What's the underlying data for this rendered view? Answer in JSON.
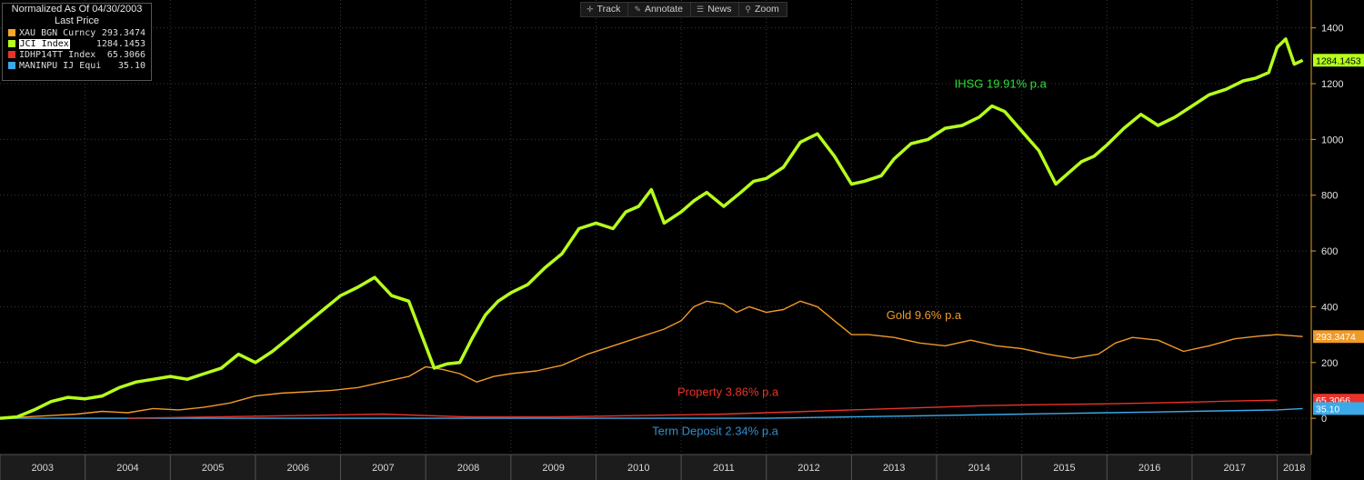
{
  "legend": {
    "header": "Normalized As Of 04/30/2003",
    "subheader": "Last Price",
    "items": [
      {
        "name": "XAU BGN Curncy",
        "value": "293.3474",
        "color": "#f5a623"
      },
      {
        "name": "JCI Index",
        "value": "1284.1453",
        "color": "#b6ff1c"
      },
      {
        "name": "IDHP14TT Index",
        "value": "65.3066",
        "color": "#e8332a"
      },
      {
        "name": "MANINPU IJ Equity",
        "value": "35.10",
        "color": "#3ba9e8"
      }
    ]
  },
  "toolbar": [
    {
      "label": "Track",
      "icon": "crosshair-icon",
      "glyph": "✛"
    },
    {
      "label": "Annotate",
      "icon": "pen-icon",
      "glyph": "✎"
    },
    {
      "label": "News",
      "icon": "news-icon",
      "glyph": "☰"
    },
    {
      "label": "Zoom",
      "icon": "magnifier-icon",
      "glyph": "⚲"
    }
  ],
  "chart_data": {
    "type": "line",
    "ylim": [
      -130,
      1500
    ],
    "yticks": [
      0,
      200,
      400,
      600,
      800,
      1000,
      1200,
      1400
    ],
    "xlim": [
      2003.0,
      2018.4
    ],
    "xticks": [
      "2003",
      "2004",
      "2005",
      "2006",
      "2007",
      "2008",
      "2009",
      "2010",
      "2011",
      "2012",
      "2013",
      "2014",
      "2015",
      "2016",
      "2017",
      "2018"
    ],
    "grid": true,
    "annotations": [
      {
        "text": "IHSG 19.91% p.a",
        "x": 2014.75,
        "y": 1185,
        "color": "#2ee03a"
      },
      {
        "text": "Gold 9.6% p.a",
        "x": 2013.85,
        "y": 355,
        "color": "#f09a28"
      },
      {
        "text": "Property 3.86% p.a",
        "x": 2011.55,
        "y": 80,
        "color": "#e8332a"
      },
      {
        "text": "Term Deposit 2.34% p.a",
        "x": 2011.4,
        "y": -60,
        "color": "#2e8fd0"
      }
    ],
    "series": [
      {
        "name": "JCI Index",
        "color": "#b6ff1c",
        "width": 3.5,
        "last": "1284.1453",
        "x": [
          2003.0,
          2003.2,
          2003.4,
          2003.6,
          2003.8,
          2004.0,
          2004.2,
          2004.4,
          2004.6,
          2004.8,
          2005.0,
          2005.2,
          2005.4,
          2005.6,
          2005.8,
          2006.0,
          2006.2,
          2006.4,
          2006.6,
          2006.8,
          2007.0,
          2007.2,
          2007.4,
          2007.6,
          2007.8,
          2007.95,
          2008.1,
          2008.25,
          2008.4,
          2008.55,
          2008.7,
          2008.85,
          2009.0,
          2009.2,
          2009.4,
          2009.6,
          2009.8,
          2010.0,
          2010.2,
          2010.35,
          2010.5,
          2010.65,
          2010.8,
          2011.0,
          2011.15,
          2011.3,
          2011.5,
          2011.7,
          2011.85,
          2012.0,
          2012.2,
          2012.4,
          2012.6,
          2012.8,
          2013.0,
          2013.15,
          2013.35,
          2013.5,
          2013.7,
          2013.9,
          2014.1,
          2014.3,
          2014.5,
          2014.65,
          2014.8,
          2015.0,
          2015.2,
          2015.4,
          2015.55,
          2015.7,
          2015.85,
          2016.0,
          2016.2,
          2016.4,
          2016.6,
          2016.8,
          2017.0,
          2017.2,
          2017.4,
          2017.6,
          2017.75,
          2017.9,
          2018.0,
          2018.1,
          2018.2,
          2018.3
        ],
        "values": [
          0,
          5,
          30,
          60,
          75,
          70,
          80,
          110,
          130,
          140,
          150,
          140,
          160,
          180,
          230,
          200,
          240,
          290,
          340,
          390,
          440,
          470,
          505,
          440,
          420,
          300,
          180,
          195,
          200,
          290,
          370,
          420,
          450,
          480,
          540,
          590,
          680,
          700,
          680,
          740,
          760,
          820,
          700,
          740,
          780,
          810,
          760,
          810,
          850,
          860,
          900,
          990,
          1020,
          940,
          840,
          850,
          870,
          930,
          985,
          1000,
          1040,
          1050,
          1080,
          1120,
          1100,
          1030,
          960,
          840,
          880,
          920,
          940,
          980,
          1040,
          1090,
          1050,
          1080,
          1120,
          1160,
          1180,
          1210,
          1220,
          1240,
          1330,
          1360,
          1270,
          1284
        ]
      },
      {
        "name": "XAU BGN Curncy",
        "color": "#f09a28",
        "width": 1.4,
        "last": "293.3474",
        "x": [
          2003.0,
          2003.3,
          2003.6,
          2003.9,
          2004.2,
          2004.5,
          2004.8,
          2005.1,
          2005.4,
          2005.7,
          2006.0,
          2006.3,
          2006.6,
          2006.9,
          2007.2,
          2007.5,
          2007.8,
          2008.0,
          2008.2,
          2008.4,
          2008.6,
          2008.8,
          2009.0,
          2009.3,
          2009.6,
          2009.9,
          2010.2,
          2010.5,
          2010.8,
          2011.0,
          2011.15,
          2011.3,
          2011.5,
          2011.65,
          2011.8,
          2012.0,
          2012.2,
          2012.4,
          2012.6,
          2012.8,
          2013.0,
          2013.2,
          2013.5,
          2013.8,
          2014.1,
          2014.4,
          2014.7,
          2015.0,
          2015.3,
          2015.6,
          2015.9,
          2016.1,
          2016.3,
          2016.6,
          2016.9,
          2017.2,
          2017.5,
          2017.8,
          2018.0,
          2018.3
        ],
        "values": [
          0,
          5,
          10,
          15,
          25,
          20,
          35,
          30,
          40,
          55,
          80,
          90,
          95,
          100,
          110,
          130,
          150,
          185,
          175,
          160,
          130,
          150,
          160,
          170,
          190,
          230,
          260,
          290,
          320,
          350,
          400,
          420,
          410,
          380,
          400,
          380,
          390,
          420,
          400,
          350,
          300,
          300,
          290,
          270,
          260,
          280,
          260,
          250,
          230,
          215,
          230,
          270,
          290,
          280,
          240,
          260,
          285,
          295,
          300,
          293
        ]
      },
      {
        "name": "IDHP14TT Index",
        "color": "#e8332a",
        "width": 1.4,
        "last": "65.3066",
        "x": [
          2004.5,
          2005.5,
          2006.5,
          2007.5,
          2008.5,
          2009.5,
          2010.5,
          2011.5,
          2012.5,
          2013.0,
          2013.5,
          2014.0,
          2014.5,
          2015.0,
          2015.5,
          2016.0,
          2016.5,
          2017.0,
          2017.5,
          2018.0
        ],
        "values": [
          0,
          5,
          10,
          15,
          5,
          5,
          10,
          15,
          25,
          30,
          35,
          40,
          45,
          48,
          50,
          52,
          55,
          58,
          62,
          65
        ]
      },
      {
        "name": "MANINPU IJ Equity",
        "color": "#3ba9e8",
        "width": 1.4,
        "last": "35.10",
        "x": [
          2003.0,
          2005.0,
          2007.0,
          2009.0,
          2011.0,
          2012.0,
          2013.0,
          2014.0,
          2015.0,
          2016.0,
          2017.0,
          2018.0,
          2018.3
        ],
        "values": [
          0,
          0,
          0,
          0,
          0,
          0,
          5,
          10,
          15,
          20,
          25,
          30,
          35
        ]
      }
    ]
  }
}
